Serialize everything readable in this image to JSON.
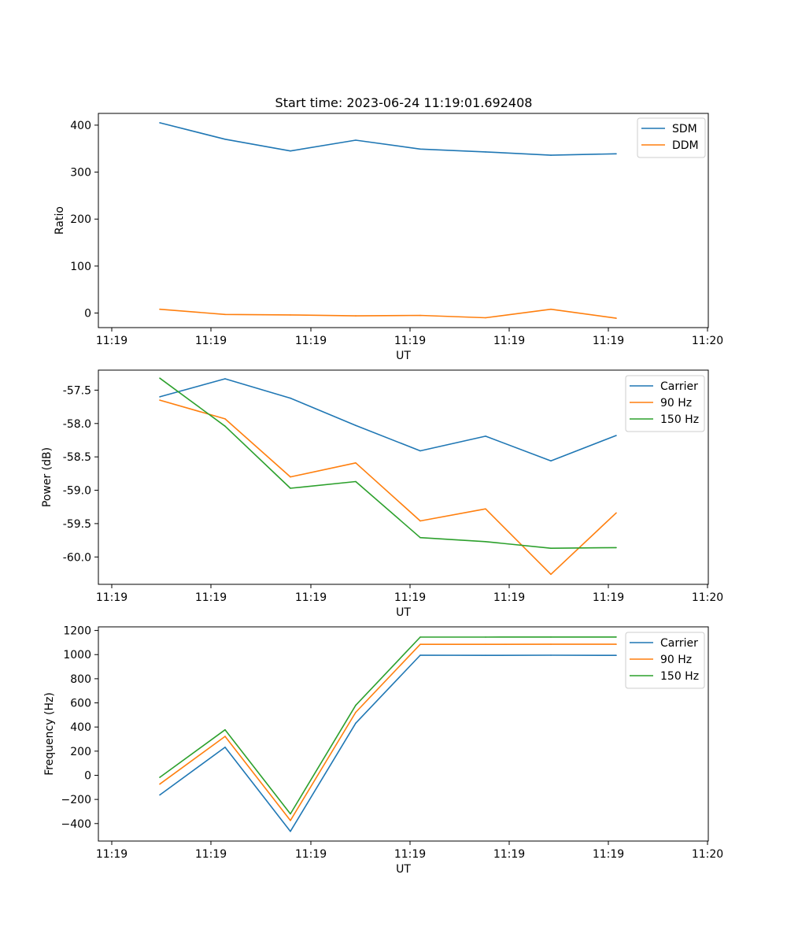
{
  "title": "Start time: 2023-06-24 11:19:01.692408",
  "colors": {
    "blue": "#1f77b4",
    "orange": "#ff7f0e",
    "green": "#2ca02c"
  },
  "chart_data": [
    {
      "type": "line",
      "xlabel": "UT",
      "ylabel": "Ratio",
      "x_tick_labels": [
        "11:19",
        "11:19",
        "11:19",
        "11:19",
        "11:19",
        "11:19",
        "11:19",
        "11:20"
      ],
      "y_ticks": [
        0,
        100,
        200,
        300,
        400
      ],
      "y_tick_labels": [
        "0",
        "100",
        "200",
        "300",
        "400"
      ],
      "ylim": [
        -31,
        425
      ],
      "legend_position": "upper right",
      "series": [
        {
          "name": "SDM",
          "color": "#1f77b4",
          "values": [
            405,
            370,
            345,
            368,
            349,
            343,
            336,
            339
          ]
        },
        {
          "name": "DDM",
          "color": "#ff7f0e",
          "values": [
            8,
            -3,
            -4,
            -6,
            -5,
            -10,
            8,
            -11
          ]
        }
      ]
    },
    {
      "type": "line",
      "xlabel": "UT",
      "ylabel": "Power (dB)",
      "x_tick_labels": [
        "11:19",
        "11:19",
        "11:19",
        "11:19",
        "11:19",
        "11:19",
        "11:19",
        "11:20"
      ],
      "y_ticks": [
        -60.0,
        -59.5,
        -59.0,
        -58.5,
        -58.0,
        -57.5
      ],
      "y_tick_labels": [
        "-60.0",
        "-59.5",
        "-59.0",
        "-58.5",
        "-58.0",
        "-57.5"
      ],
      "ylim": [
        -60.41,
        -57.2
      ],
      "legend_position": "upper right",
      "series": [
        {
          "name": "Carrier",
          "color": "#1f77b4",
          "values": [
            -57.6,
            -57.33,
            -57.62,
            -58.03,
            -58.41,
            -58.19,
            -58.56,
            -58.18
          ]
        },
        {
          "name": "90 Hz",
          "color": "#ff7f0e",
          "values": [
            -57.65,
            -57.93,
            -58.8,
            -58.59,
            -59.46,
            -59.28,
            -60.26,
            -59.34
          ]
        },
        {
          "name": "150 Hz",
          "color": "#2ca02c",
          "values": [
            -57.32,
            -58.04,
            -58.97,
            -58.87,
            -59.71,
            -59.77,
            -59.87,
            -59.86
          ]
        }
      ]
    },
    {
      "type": "line",
      "xlabel": "UT",
      "ylabel": "Frequency (Hz)",
      "x_tick_labels": [
        "11:19",
        "11:19",
        "11:19",
        "11:19",
        "11:19",
        "11:19",
        "11:19",
        "11:20"
      ],
      "y_ticks": [
        -400,
        -200,
        0,
        200,
        400,
        600,
        800,
        1000,
        1200
      ],
      "y_tick_labels": [
        "−400",
        "−200",
        "0",
        "200",
        "400",
        "600",
        "800",
        "1000",
        "1200"
      ],
      "ylim": [
        -545,
        1230
      ],
      "legend_position": "upper right",
      "series": [
        {
          "name": "Carrier",
          "color": "#1f77b4",
          "values": [
            -163,
            232,
            -465,
            432,
            995,
            994,
            995,
            994
          ]
        },
        {
          "name": "90 Hz",
          "color": "#ff7f0e",
          "values": [
            -73,
            322,
            -375,
            522,
            1085,
            1085,
            1086,
            1086
          ]
        },
        {
          "name": "150 Hz",
          "color": "#2ca02c",
          "values": [
            -17,
            377,
            -320,
            580,
            1145,
            1145,
            1146,
            1146
          ]
        }
      ]
    }
  ]
}
